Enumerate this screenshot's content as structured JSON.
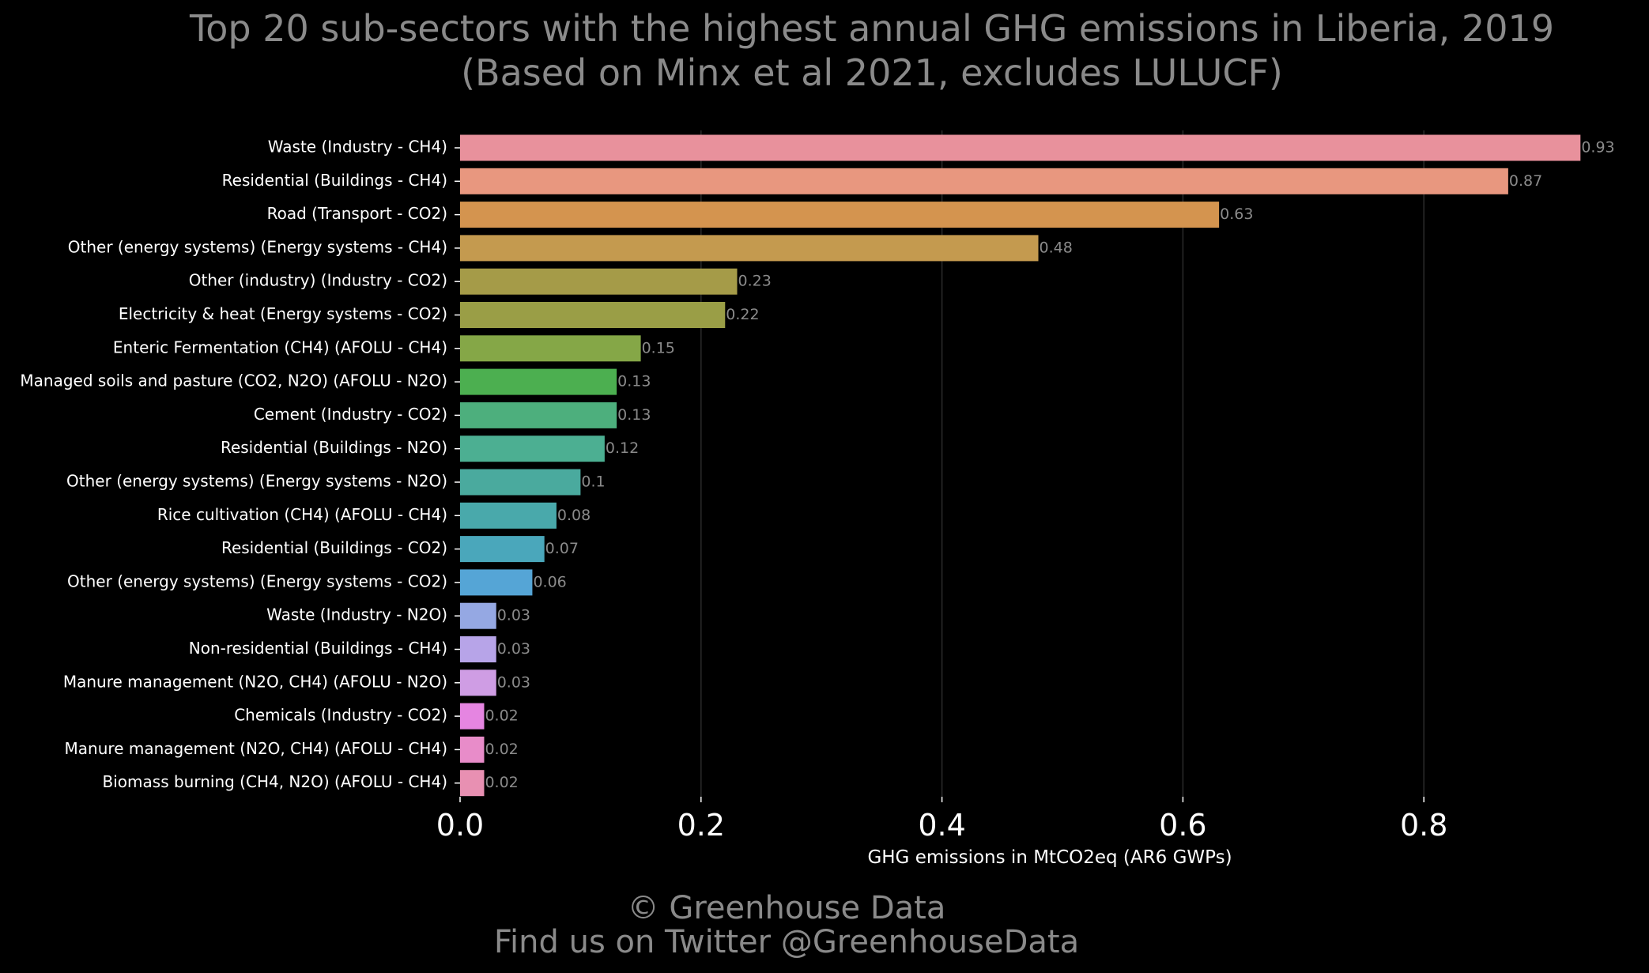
{
  "chart_data": {
    "type": "bar",
    "orientation": "horizontal",
    "title_line1": "Top 20 sub-sectors with the highest annual GHG emissions in Liberia, 2019",
    "title_line2": "(Based on Minx et al 2021, excludes LULUCF)",
    "xlabel": "GHG emissions in MtCO2eq (AR6 GWPs)",
    "ylabel": "",
    "xlim": [
      0,
      0.95
    ],
    "xticks": [
      0.0,
      0.2,
      0.4,
      0.6,
      0.8
    ],
    "xtick_labels": [
      "0.0",
      "0.2",
      "0.4",
      "0.6",
      "0.8"
    ],
    "grid": "vertical",
    "categories": [
      "Waste (Industry - CH4)",
      "Residential (Buildings - CH4)",
      "Road (Transport - CO2)",
      "Other (energy systems) (Energy systems - CH4)",
      "Other (industry) (Industry - CO2)",
      "Electricity & heat (Energy systems - CO2)",
      "Enteric Fermentation (CH4) (AFOLU - CH4)",
      "Managed soils and pasture (CO2, N2O) (AFOLU - N2O)",
      "Cement (Industry - CO2)",
      "Residential (Buildings - N2O)",
      "Other (energy systems) (Energy systems - N2O)",
      "Rice cultivation (CH4) (AFOLU - CH4)",
      "Residential (Buildings - CO2)",
      "Other (energy systems) (Energy systems - CO2)",
      "Waste (Industry - N2O)",
      "Non-residential (Buildings - CH4)",
      "Manure management (N2O, CH4) (AFOLU - N2O)",
      "Chemicals (Industry - CO2)",
      "Manure management (N2O, CH4) (AFOLU - CH4)",
      "Biomass burning (CH4, N2O) (AFOLU - CH4)"
    ],
    "values": [
      0.93,
      0.87,
      0.63,
      0.48,
      0.23,
      0.22,
      0.15,
      0.13,
      0.13,
      0.12,
      0.1,
      0.08,
      0.07,
      0.06,
      0.03,
      0.03,
      0.03,
      0.02,
      0.02,
      0.02
    ],
    "value_labels": [
      "0.93",
      "0.87",
      "0.63",
      "0.48",
      "0.23",
      "0.22",
      "0.15",
      "0.13",
      "0.13",
      "0.12",
      "0.1",
      "0.08",
      "0.07",
      "0.06",
      "0.03",
      "0.03",
      "0.03",
      "0.02",
      "0.02",
      "0.02"
    ],
    "colors": [
      "#e8919c",
      "#e8977f",
      "#d4944f",
      "#c49a4f",
      "#a59b48",
      "#9a9e46",
      "#85a747",
      "#4caf50",
      "#4daf7d",
      "#4caf92",
      "#4aaa9e",
      "#49a9ab",
      "#4aa7bb",
      "#55a5d6",
      "#95a8e3",
      "#b7a4e8",
      "#cf9de4",
      "#e585e1",
      "#e88cc9",
      "#e890b2"
    ],
    "background": "#000000"
  },
  "footer": {
    "line1": "© Greenhouse Data",
    "line2": "Find us on Twitter @GreenhouseData"
  }
}
